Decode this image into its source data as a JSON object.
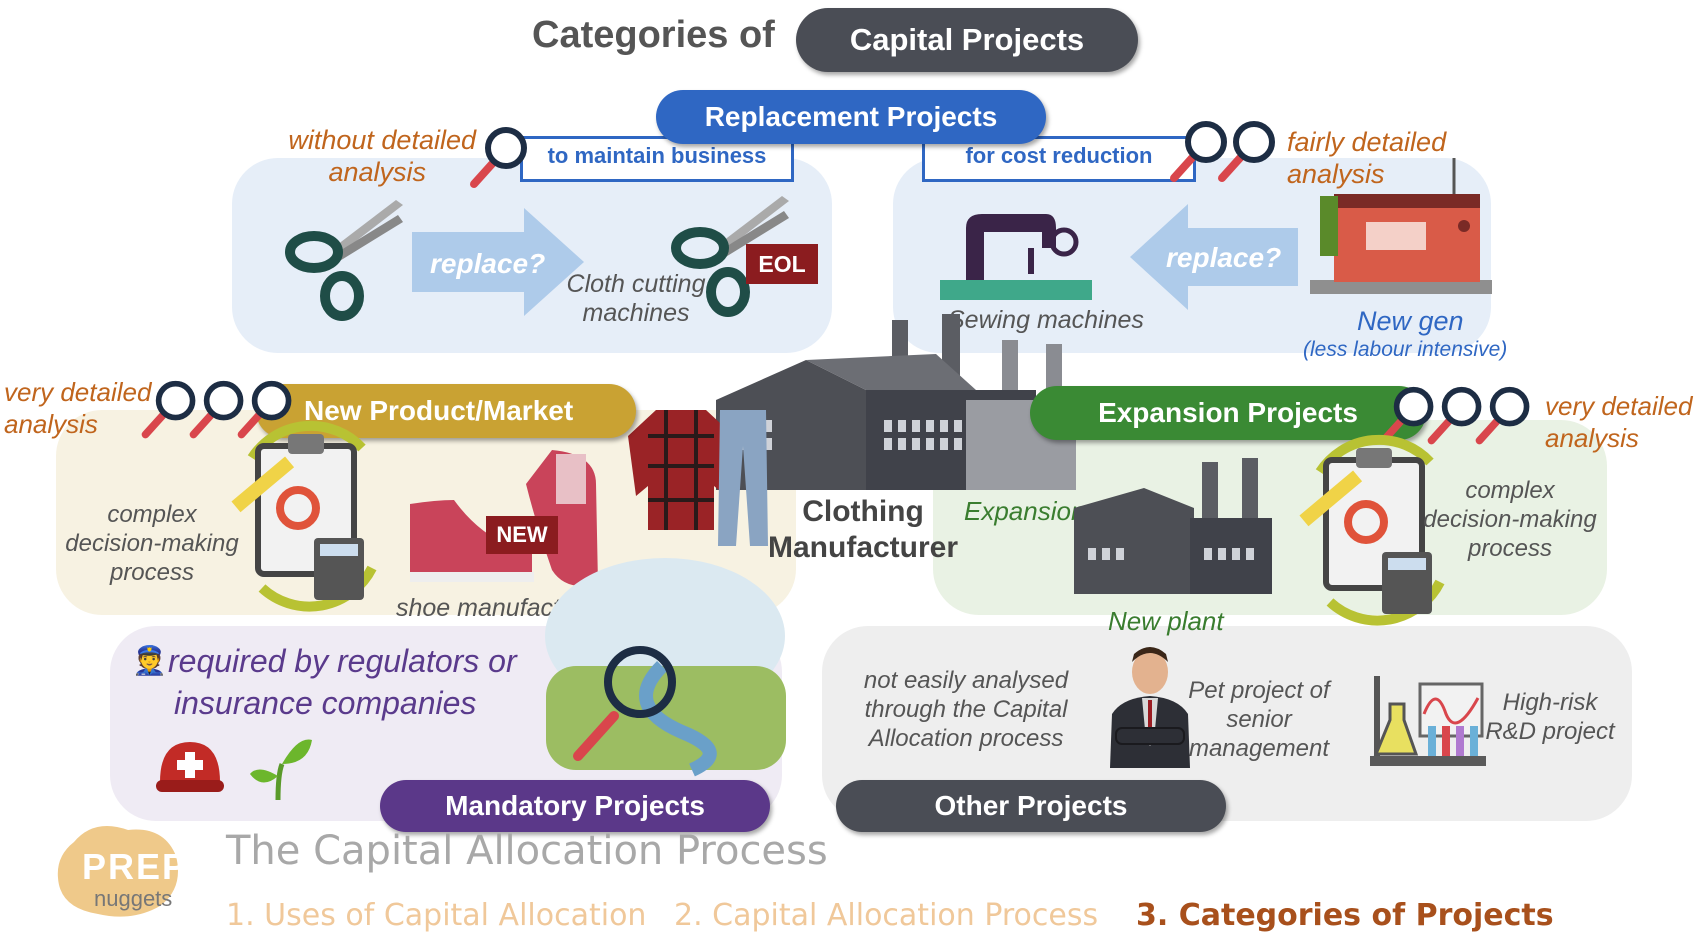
{
  "title": {
    "prefix": "Categories of",
    "pill": "Capital Projects"
  },
  "replacement": {
    "title": "Replacement Projects",
    "maintain": "to maintain business",
    "cost": "for cost reduction",
    "left_note": [
      "without detailed",
      "analysis"
    ],
    "right_note": [
      "fairly detailed",
      "analysis"
    ],
    "replace_label": "replace?",
    "cloth_label": [
      "Cloth cutting",
      "machines"
    ],
    "eol": "EOL",
    "sewing_label": "Sewing machines",
    "newgen": "New gen",
    "newgen_sub": "(less labour intensive)"
  },
  "center": {
    "label": [
      "Clothing",
      "Manufacturer"
    ]
  },
  "new_product": {
    "title": "New Product/Market",
    "note": [
      "very detailed",
      "analysis"
    ],
    "process": [
      "complex",
      "decision-making",
      "process"
    ],
    "badge": "NEW",
    "shoe_label": "shoe manufacturing"
  },
  "expansion": {
    "title": "Expansion Projects",
    "note": [
      "very detailed",
      "analysis"
    ],
    "expansion_label": "Expansion",
    "process": [
      "complex",
      "decision-making",
      "process"
    ],
    "new_plant": "New plant"
  },
  "mandatory": {
    "title": "Mandatory Projects",
    "text": [
      "required by regulators or",
      "insurance companies"
    ]
  },
  "other": {
    "title": "Other Projects",
    "not_easily": [
      "not easily analysed",
      "through the Capital",
      "Allocation process"
    ],
    "pet": [
      "Pet project of",
      "senior",
      "management"
    ],
    "highrisk": [
      "High-risk",
      "R&D project"
    ]
  },
  "footer": {
    "logo_top": "PREP",
    "logo_bottom": "nuggets",
    "heading": "The Capital Allocation Process",
    "links": [
      "1. Uses of Capital Allocation",
      "2. Capital Allocation Process",
      "3. Categories of Projects"
    ]
  },
  "colors": {
    "blue": "#2f67c3",
    "gold": "#c9a233",
    "green": "#3a8a34",
    "purple": "#5b3889",
    "grey": "#4a4d55",
    "orange": "#c0651d"
  }
}
